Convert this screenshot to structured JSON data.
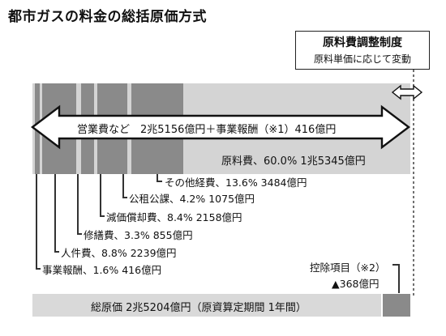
{
  "title": "都市ガスの料金の総括原価方式",
  "callout": {
    "line1": "原料費調整制度",
    "line2": "原料単価に応じて変動"
  },
  "arrow_label": "営業費など　2兆5156億円＋事業報酬（※1）416億円",
  "raw_material": "原料費、60.0% 1兆5345億円",
  "items": [
    {
      "label": "その他経費、13.6% 3484億円",
      "name": "その他経費",
      "percent": 13.6
    },
    {
      "label": "公租公課、4.2% 1075億円",
      "name": "公租公課",
      "percent": 4.2
    },
    {
      "label": "減価償却費、8.4% 2158億円",
      "name": "減価償却費",
      "percent": 8.4
    },
    {
      "label": "修繕費、3.3% 855億円",
      "name": "修繕費",
      "percent": 3.3
    },
    {
      "label": "人件費、8.8% 2239億円",
      "name": "人件費",
      "percent": 8.8
    },
    {
      "label": "事業報酬、1.6% 416億円",
      "name": "事業報酬",
      "percent": 1.6
    }
  ],
  "deduction": {
    "label": "控除項目（※2）",
    "value": "▲368億円"
  },
  "total": "総原価 2兆5204億円（原資算定期間 1年間）",
  "colors": {
    "band": "#d4d4d4",
    "segment": "#8a8a8a",
    "line": "#333333"
  }
}
